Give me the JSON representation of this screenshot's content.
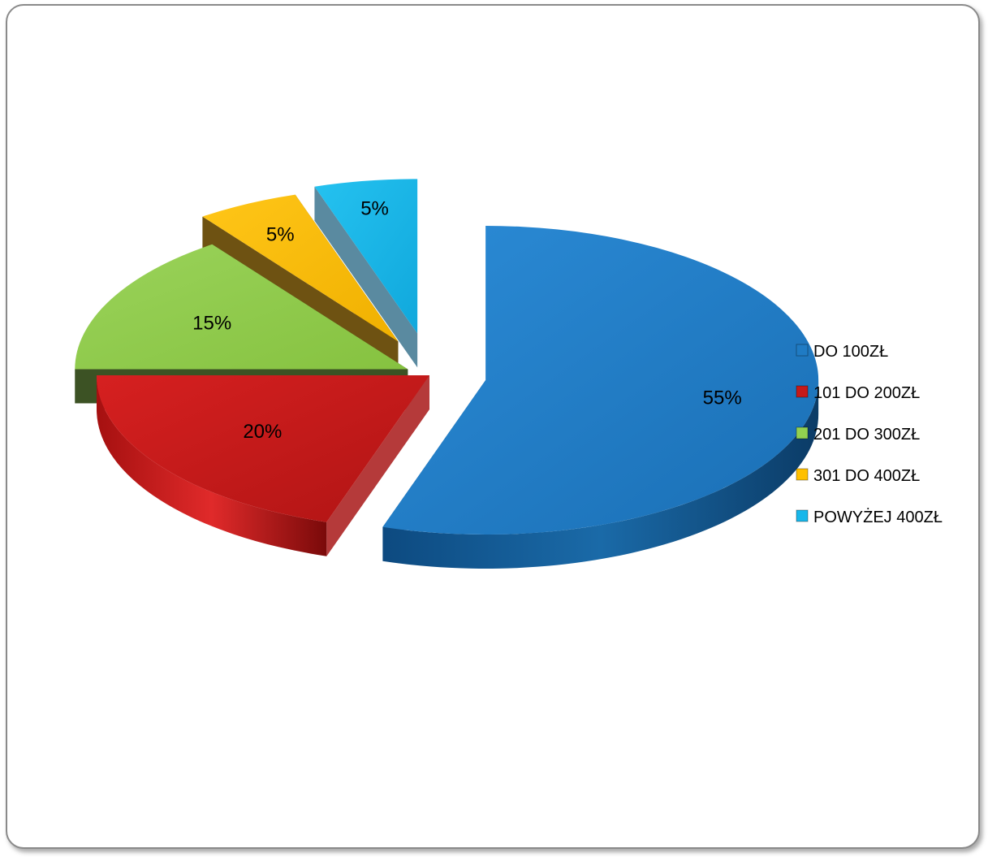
{
  "chart_data": {
    "type": "pie",
    "title": "",
    "exploded": true,
    "three_d": true,
    "legend_position": "right",
    "categories": [
      "DO 100ZŁ",
      "101 DO 200ZŁ",
      "201 DO 300ZŁ",
      "301 DO 400ZŁ",
      "POWYŻEJ 400ZŁ"
    ],
    "values": [
      55,
      20,
      15,
      5,
      5
    ],
    "data_labels": [
      "55%",
      "20%",
      "15%",
      "5%",
      "5%"
    ],
    "colors": [
      "#1f7bc4",
      "#c51a1a",
      "#92d050",
      "#ffc000",
      "#18b7ea"
    ]
  }
}
